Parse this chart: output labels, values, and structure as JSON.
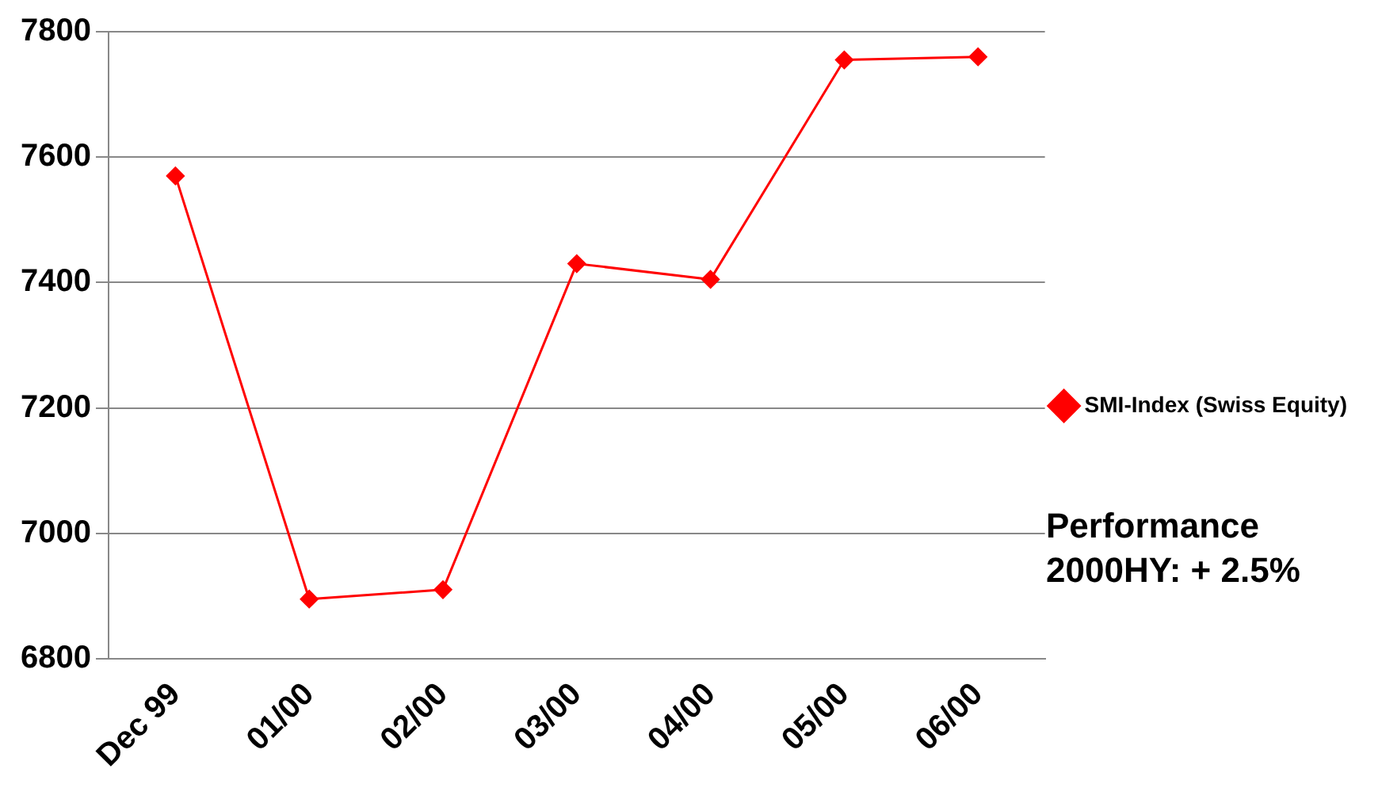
{
  "chart_data": {
    "type": "line",
    "categories": [
      "Dec 99",
      "01/00",
      "02/00",
      "03/00",
      "04/00",
      "05/00",
      "06/00"
    ],
    "series": [
      {
        "name": "SMI-Index (Swiss Equity)",
        "color": "#ff0000",
        "values": [
          7570,
          6895,
          6910,
          7430,
          7405,
          7755,
          7760
        ]
      }
    ],
    "ylim": [
      6800,
      7800
    ],
    "yticks": [
      6800,
      7000,
      7200,
      7400,
      7600,
      7800
    ],
    "grid": "y",
    "legend": "right",
    "marker": "diamond",
    "line_style": "solid",
    "annotations": [
      "Performance 2000HY: + 2.5%"
    ]
  }
}
